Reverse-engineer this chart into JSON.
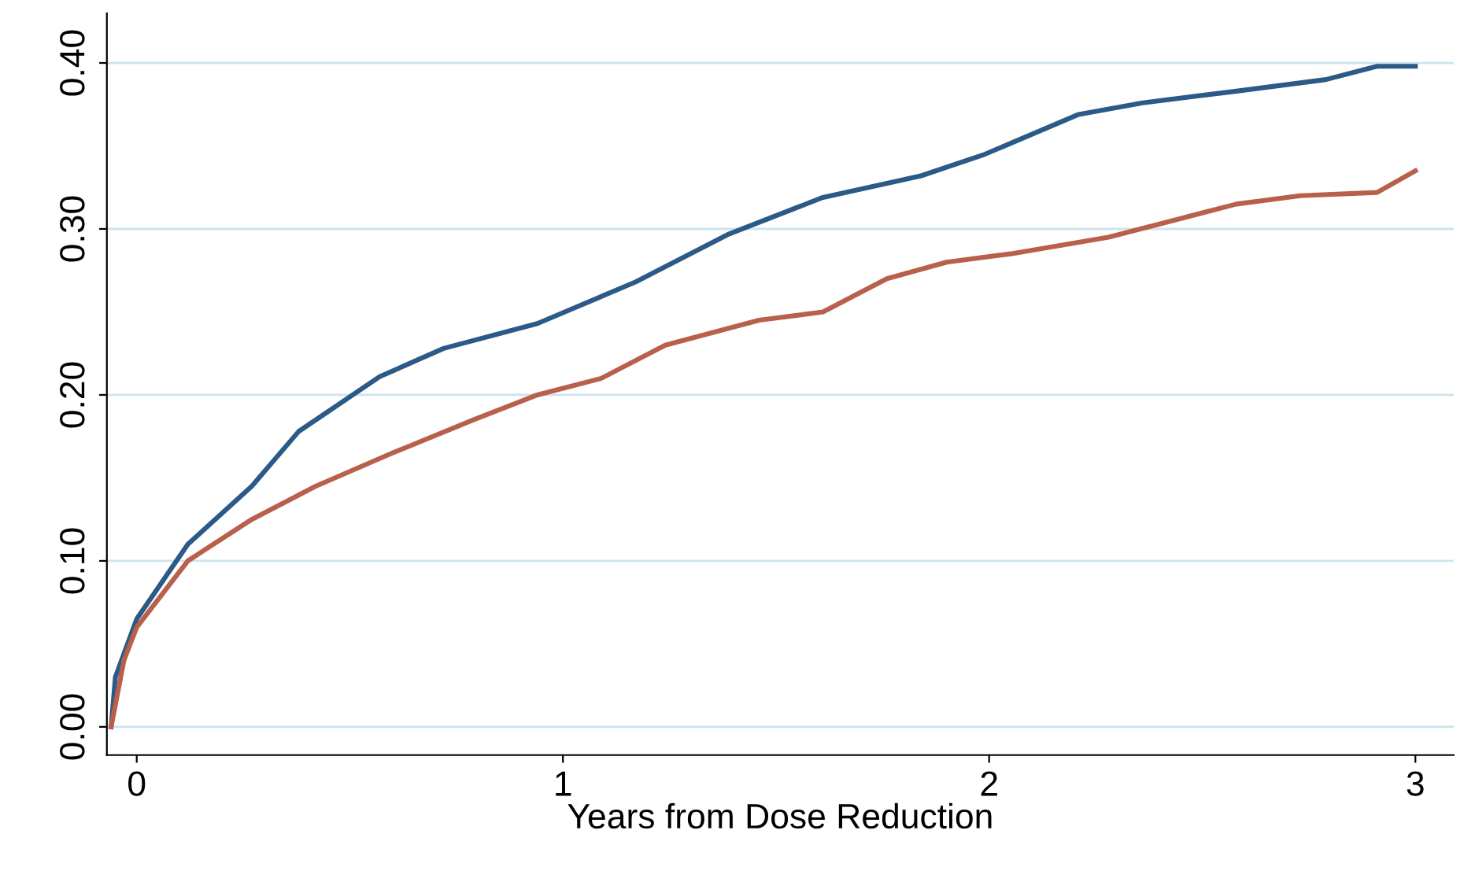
{
  "chart_data": {
    "type": "line",
    "xlabel": "Years from Dose Reduction",
    "xlim": [
      -0.07,
      3.09
    ],
    "ylim": [
      -0.017,
      0.43
    ],
    "xticks": [
      0,
      1,
      2,
      3
    ],
    "yticks": [
      {
        "value": 0,
        "label": "0.00"
      },
      {
        "value": 0.1,
        "label": "0.10"
      },
      {
        "value": 0.2,
        "label": "0.20"
      },
      {
        "value": 0.3,
        "label": "0.30"
      },
      {
        "value": 0.4,
        "label": "0.40"
      }
    ],
    "grid": "y",
    "series": [
      {
        "color": "#2b5a86",
        "x": [
          -0.06,
          -0.05,
          0,
          0.12,
          0.27,
          0.38,
          0.57,
          0.72,
          0.94,
          1.17,
          1.39,
          1.61,
          1.84,
          1.99,
          2.21,
          2.36,
          2.58,
          2.79,
          2.91,
          3.0
        ],
        "values": [
          0,
          0.03,
          0.065,
          0.11,
          0.145,
          0.178,
          0.211,
          0.228,
          0.243,
          0.268,
          0.297,
          0.319,
          0.332,
          0.345,
          0.369,
          0.376,
          0.383,
          0.39,
          0.398,
          0.398
        ]
      },
      {
        "color": "#b8604c",
        "x": [
          -0.06,
          -0.03,
          0,
          0.12,
          0.27,
          0.42,
          0.6,
          0.79,
          0.94,
          1.09,
          1.24,
          1.46,
          1.61,
          1.76,
          1.9,
          2.05,
          2.28,
          2.43,
          2.58,
          2.73,
          2.91,
          3.0
        ],
        "values": [
          0,
          0.04,
          0.06,
          0.1,
          0.125,
          0.145,
          0.165,
          0.185,
          0.2,
          0.21,
          0.23,
          0.245,
          0.25,
          0.27,
          0.28,
          0.285,
          0.295,
          0.305,
          0.315,
          0.32,
          0.322,
          0.335
        ]
      }
    ]
  }
}
